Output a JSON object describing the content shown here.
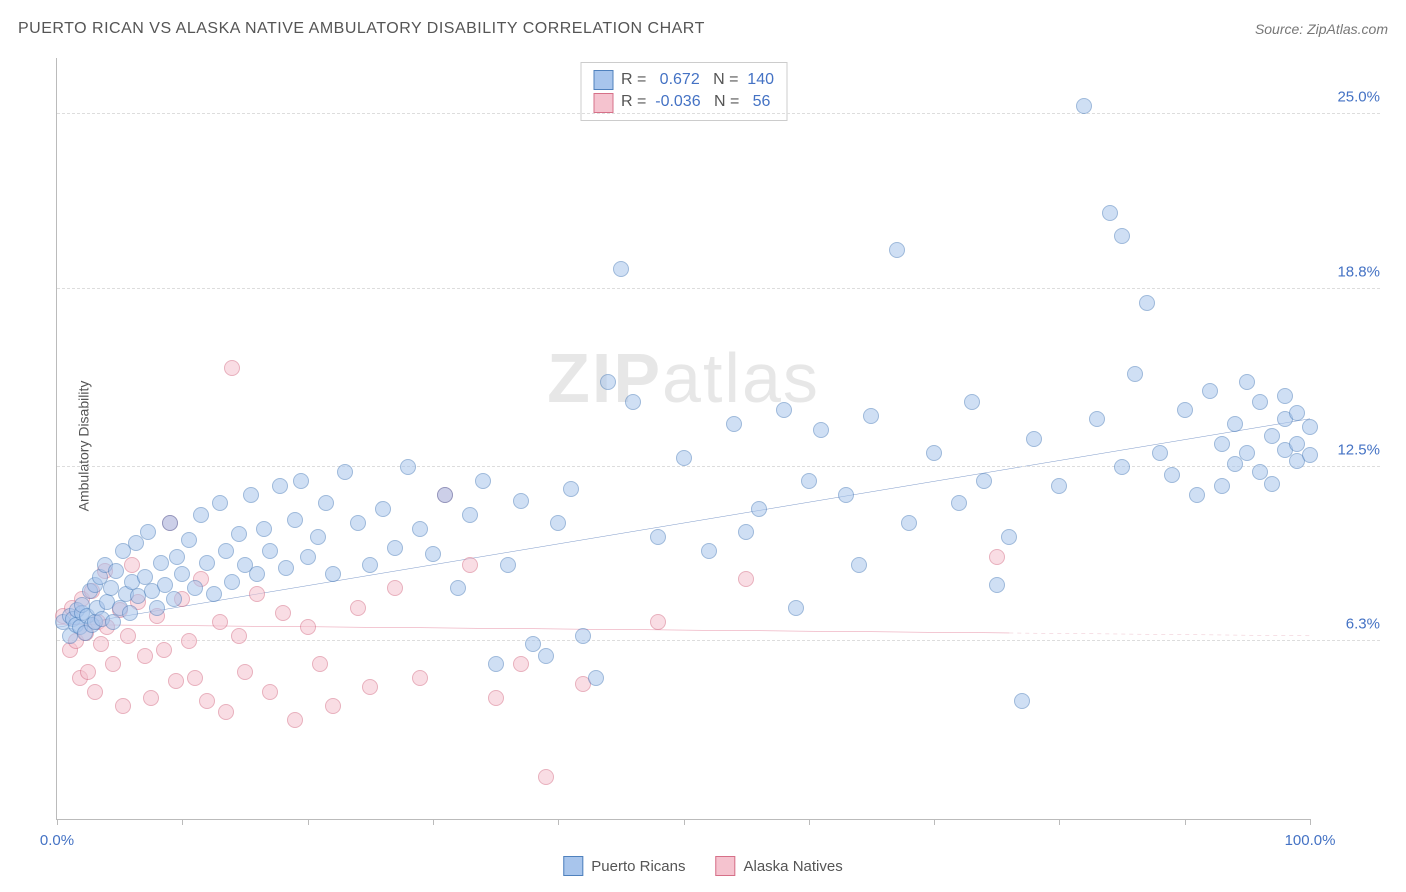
{
  "title": "PUERTO RICAN VS ALASKA NATIVE AMBULATORY DISABILITY CORRELATION CHART",
  "source_label": "Source: ZipAtlas.com",
  "y_axis_label": "Ambulatory Disability",
  "watermark_a": "ZIP",
  "watermark_b": "atlas",
  "chart": {
    "type": "scatter",
    "background_color": "#ffffff",
    "grid_color": "#dddddd",
    "axis_color": "#bbbbbb",
    "xlim": [
      0,
      100
    ],
    "ylim": [
      0,
      27
    ],
    "x_ticks": [
      0,
      10,
      20,
      30,
      40,
      50,
      60,
      70,
      80,
      90,
      100
    ],
    "x_tick_labels": {
      "0": "0.0%",
      "100": "100.0%"
    },
    "y_ticks": [
      6.3,
      12.5,
      18.8,
      25.0
    ],
    "y_tick_labels": [
      "6.3%",
      "12.5%",
      "18.8%",
      "25.0%"
    ],
    "tick_label_color": "#4472c4",
    "tick_label_fontsize": 15,
    "marker_radius": 8,
    "marker_opacity": 0.55,
    "series": [
      {
        "name": "Puerto Ricans",
        "color_fill": "#a8c5ec",
        "color_stroke": "#4f81bd",
        "r_label": "R =",
        "r_value": "0.672",
        "n_label": "N =",
        "n_value": "140",
        "trend": {
          "x1": 0,
          "y1": 6.8,
          "x2": 100,
          "y2": 14.2,
          "color": "#2e5ca8",
          "width": 2.2
        },
        "points": [
          [
            0.5,
            7.0
          ],
          [
            1,
            6.5
          ],
          [
            1,
            7.2
          ],
          [
            1.3,
            7.1
          ],
          [
            1.5,
            6.9
          ],
          [
            1.6,
            7.4
          ],
          [
            1.8,
            6.8
          ],
          [
            2,
            7.3
          ],
          [
            2,
            7.6
          ],
          [
            2.2,
            6.6
          ],
          [
            2.4,
            7.2
          ],
          [
            2.6,
            8.1
          ],
          [
            2.8,
            6.9
          ],
          [
            3,
            7.0
          ],
          [
            3,
            8.3
          ],
          [
            3.2,
            7.5
          ],
          [
            3.4,
            8.6
          ],
          [
            3.6,
            7.1
          ],
          [
            3.8,
            9.0
          ],
          [
            4,
            7.7
          ],
          [
            4.3,
            8.2
          ],
          [
            4.5,
            7.0
          ],
          [
            4.7,
            8.8
          ],
          [
            5,
            7.5
          ],
          [
            5.3,
            9.5
          ],
          [
            5.5,
            8.0
          ],
          [
            5.8,
            7.3
          ],
          [
            6,
            8.4
          ],
          [
            6.3,
            9.8
          ],
          [
            6.5,
            7.9
          ],
          [
            7,
            8.6
          ],
          [
            7.3,
            10.2
          ],
          [
            7.6,
            8.1
          ],
          [
            8,
            7.5
          ],
          [
            8.3,
            9.1
          ],
          [
            8.6,
            8.3
          ],
          [
            9,
            10.5
          ],
          [
            9.3,
            7.8
          ],
          [
            9.6,
            9.3
          ],
          [
            10,
            8.7
          ],
          [
            10.5,
            9.9
          ],
          [
            11,
            8.2
          ],
          [
            11.5,
            10.8
          ],
          [
            12,
            9.1
          ],
          [
            12.5,
            8.0
          ],
          [
            13,
            11.2
          ],
          [
            13.5,
            9.5
          ],
          [
            14,
            8.4
          ],
          [
            14.5,
            10.1
          ],
          [
            15,
            9.0
          ],
          [
            15.5,
            11.5
          ],
          [
            16,
            8.7
          ],
          [
            16.5,
            10.3
          ],
          [
            17,
            9.5
          ],
          [
            17.8,
            11.8
          ],
          [
            18.3,
            8.9
          ],
          [
            19,
            10.6
          ],
          [
            19.5,
            12.0
          ],
          [
            20,
            9.3
          ],
          [
            20.8,
            10.0
          ],
          [
            21.5,
            11.2
          ],
          [
            22,
            8.7
          ],
          [
            23,
            12.3
          ],
          [
            24,
            10.5
          ],
          [
            25,
            9.0
          ],
          [
            26,
            11.0
          ],
          [
            27,
            9.6
          ],
          [
            28,
            12.5
          ],
          [
            29,
            10.3
          ],
          [
            30,
            9.4
          ],
          [
            31,
            11.5
          ],
          [
            32,
            8.2
          ],
          [
            33,
            10.8
          ],
          [
            34,
            12.0
          ],
          [
            35,
            5.5
          ],
          [
            36,
            9.0
          ],
          [
            37,
            11.3
          ],
          [
            38,
            6.2
          ],
          [
            39,
            5.8
          ],
          [
            40,
            10.5
          ],
          [
            41,
            11.7
          ],
          [
            42,
            6.5
          ],
          [
            43,
            5.0
          ],
          [
            44,
            15.5
          ],
          [
            45,
            19.5
          ],
          [
            46,
            14.8
          ],
          [
            48,
            10.0
          ],
          [
            50,
            12.8
          ],
          [
            52,
            9.5
          ],
          [
            54,
            14.0
          ],
          [
            55,
            10.2
          ],
          [
            56,
            11.0
          ],
          [
            58,
            14.5
          ],
          [
            59,
            7.5
          ],
          [
            60,
            12.0
          ],
          [
            61,
            13.8
          ],
          [
            63,
            11.5
          ],
          [
            64,
            9.0
          ],
          [
            65,
            14.3
          ],
          [
            67,
            20.2
          ],
          [
            68,
            10.5
          ],
          [
            70,
            13.0
          ],
          [
            72,
            11.2
          ],
          [
            73,
            14.8
          ],
          [
            74,
            12.0
          ],
          [
            75,
            8.3
          ],
          [
            76,
            10.0
          ],
          [
            77,
            4.2
          ],
          [
            78,
            13.5
          ],
          [
            80,
            11.8
          ],
          [
            82,
            25.3
          ],
          [
            83,
            14.2
          ],
          [
            84,
            21.5
          ],
          [
            85,
            12.5
          ],
          [
            85,
            20.7
          ],
          [
            86,
            15.8
          ],
          [
            87,
            18.3
          ],
          [
            88,
            13.0
          ],
          [
            89,
            12.2
          ],
          [
            90,
            14.5
          ],
          [
            91,
            11.5
          ],
          [
            92,
            15.2
          ],
          [
            93,
            13.3
          ],
          [
            93,
            11.8
          ],
          [
            94,
            14.0
          ],
          [
            94,
            12.6
          ],
          [
            95,
            15.5
          ],
          [
            95,
            13.0
          ],
          [
            96,
            14.8
          ],
          [
            96,
            12.3
          ],
          [
            97,
            13.6
          ],
          [
            97,
            11.9
          ],
          [
            98,
            14.2
          ],
          [
            98,
            13.1
          ],
          [
            98,
            15.0
          ],
          [
            99,
            12.7
          ],
          [
            99,
            14.4
          ],
          [
            99,
            13.3
          ],
          [
            100,
            12.9
          ],
          [
            100,
            13.9
          ]
        ]
      },
      {
        "name": "Alaska Natives",
        "color_fill": "#f5c3cf",
        "color_stroke": "#d67088",
        "r_label": "R =",
        "r_value": "-0.036",
        "n_label": "N =",
        "n_value": "56",
        "trend": {
          "x1": 0,
          "y1": 6.9,
          "x2": 76,
          "y2": 6.6,
          "color": "#d53e64",
          "width": 2
        },
        "trend_ext": {
          "x1": 76,
          "y1": 6.6,
          "x2": 100,
          "y2": 6.5,
          "color": "#d67088",
          "width": 1.5,
          "dash": "4,4"
        },
        "points": [
          [
            0.5,
            7.2
          ],
          [
            1,
            6.0
          ],
          [
            1.2,
            7.5
          ],
          [
            1.5,
            6.3
          ],
          [
            1.8,
            5.0
          ],
          [
            2,
            7.8
          ],
          [
            2.3,
            6.6
          ],
          [
            2.5,
            5.2
          ],
          [
            2.8,
            8.1
          ],
          [
            3,
            4.5
          ],
          [
            3.3,
            7.0
          ],
          [
            3.5,
            6.2
          ],
          [
            3.8,
            8.8
          ],
          [
            4,
            6.8
          ],
          [
            4.5,
            5.5
          ],
          [
            5,
            7.4
          ],
          [
            5.3,
            4.0
          ],
          [
            5.7,
            6.5
          ],
          [
            6,
            9.0
          ],
          [
            6.5,
            7.7
          ],
          [
            7,
            5.8
          ],
          [
            7.5,
            4.3
          ],
          [
            8,
            7.2
          ],
          [
            8.5,
            6.0
          ],
          [
            9,
            10.5
          ],
          [
            9.5,
            4.9
          ],
          [
            10,
            7.8
          ],
          [
            10.5,
            6.3
          ],
          [
            11,
            5.0
          ],
          [
            11.5,
            8.5
          ],
          [
            12,
            4.2
          ],
          [
            13,
            7.0
          ],
          [
            13.5,
            3.8
          ],
          [
            14,
            16.0
          ],
          [
            14.5,
            6.5
          ],
          [
            15,
            5.2
          ],
          [
            16,
            8.0
          ],
          [
            17,
            4.5
          ],
          [
            18,
            7.3
          ],
          [
            19,
            3.5
          ],
          [
            20,
            6.8
          ],
          [
            21,
            5.5
          ],
          [
            22,
            4.0
          ],
          [
            24,
            7.5
          ],
          [
            25,
            4.7
          ],
          [
            27,
            8.2
          ],
          [
            29,
            5.0
          ],
          [
            31,
            11.5
          ],
          [
            33,
            9.0
          ],
          [
            35,
            4.3
          ],
          [
            37,
            5.5
          ],
          [
            39,
            1.5
          ],
          [
            42,
            4.8
          ],
          [
            48,
            7.0
          ],
          [
            55,
            8.5
          ],
          [
            75,
            9.3
          ]
        ]
      }
    ]
  },
  "legend": {
    "series1_label": "Puerto Ricans",
    "series2_label": "Alaska Natives"
  }
}
